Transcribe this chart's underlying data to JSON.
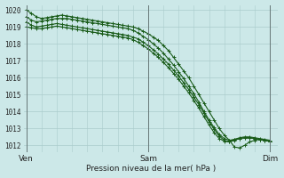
{
  "background_color": "#cce8e8",
  "grid_color": "#aacccc",
  "line_color": "#1a5c1a",
  "xlabel": "Pression niveau de la mer( hPa )",
  "xtick_labels": [
    "Ven",
    "Sam",
    "Dim"
  ],
  "xtick_positions": [
    0,
    24,
    48
  ],
  "ytick_min": 1012,
  "ytick_max": 1020,
  "xlim": [
    -0.5,
    49.5
  ],
  "ylim": [
    1011.6,
    1020.3
  ],
  "line1_x": [
    0,
    1,
    2,
    3,
    4,
    5,
    6,
    7,
    8,
    9,
    10,
    11,
    12,
    13,
    14,
    15,
    16,
    17,
    18,
    19,
    20,
    21,
    22,
    23,
    24,
    25,
    26,
    27,
    28,
    29,
    30,
    31,
    32,
    33,
    34,
    35,
    36,
    37,
    38,
    39,
    40,
    41,
    42,
    43,
    44,
    45,
    46,
    47,
    48
  ],
  "line1_y": [
    1020.0,
    1019.8,
    1019.6,
    1019.5,
    1019.55,
    1019.6,
    1019.65,
    1019.7,
    1019.65,
    1019.6,
    1019.55,
    1019.5,
    1019.45,
    1019.4,
    1019.35,
    1019.3,
    1019.25,
    1019.2,
    1019.15,
    1019.1,
    1019.05,
    1019.0,
    1018.9,
    1018.75,
    1018.6,
    1018.4,
    1018.2,
    1017.9,
    1017.6,
    1017.2,
    1016.8,
    1016.4,
    1016.0,
    1015.5,
    1015.0,
    1014.5,
    1014.0,
    1013.5,
    1013.0,
    1012.6,
    1012.3,
    1011.9,
    1011.85,
    1012.0,
    1012.2,
    1012.3,
    1012.35,
    1012.3,
    1012.25
  ],
  "line2_x": [
    0,
    1,
    2,
    3,
    4,
    5,
    6,
    7,
    8,
    9,
    10,
    11,
    12,
    13,
    14,
    15,
    16,
    17,
    18,
    19,
    20,
    21,
    22,
    23,
    24,
    25,
    26,
    27,
    28,
    29,
    30,
    31,
    32,
    33,
    34,
    35,
    36,
    37,
    38,
    39,
    40,
    41,
    42,
    43,
    44,
    45,
    46,
    47,
    48
  ],
  "line2_y": [
    1019.3,
    1019.1,
    1019.0,
    1019.05,
    1019.1,
    1019.15,
    1019.2,
    1019.15,
    1019.1,
    1019.05,
    1019.0,
    1018.95,
    1018.9,
    1018.85,
    1018.8,
    1018.75,
    1018.7,
    1018.65,
    1018.6,
    1018.55,
    1018.5,
    1018.4,
    1018.3,
    1018.1,
    1017.9,
    1017.65,
    1017.4,
    1017.1,
    1016.8,
    1016.45,
    1016.1,
    1015.7,
    1015.3,
    1014.85,
    1014.4,
    1013.9,
    1013.4,
    1012.95,
    1012.55,
    1012.3,
    1012.2,
    1012.3,
    1012.4,
    1012.45,
    1012.45,
    1012.4,
    1012.35,
    1012.3,
    1012.25
  ],
  "line3_x": [
    0,
    1,
    2,
    3,
    4,
    5,
    6,
    7,
    8,
    9,
    10,
    11,
    12,
    13,
    14,
    15,
    16,
    17,
    18,
    19,
    20,
    21,
    22,
    23,
    24,
    25,
    26,
    27,
    28,
    29,
    30,
    31,
    32,
    33,
    34,
    35,
    36,
    37,
    38,
    39,
    40,
    41,
    42,
    43,
    44,
    45,
    46,
    47,
    48
  ],
  "line3_y": [
    1019.6,
    1019.4,
    1019.3,
    1019.35,
    1019.4,
    1019.45,
    1019.5,
    1019.5,
    1019.5,
    1019.45,
    1019.4,
    1019.35,
    1019.3,
    1019.25,
    1019.2,
    1019.15,
    1019.1,
    1019.05,
    1019.0,
    1018.95,
    1018.9,
    1018.8,
    1018.65,
    1018.45,
    1018.25,
    1018.0,
    1017.75,
    1017.45,
    1017.1,
    1016.75,
    1016.35,
    1015.95,
    1015.5,
    1015.05,
    1014.55,
    1014.0,
    1013.5,
    1013.05,
    1012.65,
    1012.4,
    1012.3,
    1012.35,
    1012.4,
    1012.45,
    1012.45,
    1012.4,
    1012.35,
    1012.3,
    1012.25
  ],
  "line4_x": [
    0,
    1,
    2,
    3,
    4,
    5,
    6,
    7,
    8,
    9,
    10,
    11,
    12,
    13,
    14,
    15,
    16,
    17,
    18,
    19,
    20,
    21,
    22,
    23,
    24,
    25,
    26,
    27,
    28,
    29,
    30,
    31,
    32,
    33,
    34,
    35,
    36,
    37,
    38,
    39,
    40,
    41,
    42,
    43,
    44,
    45,
    46,
    47,
    48
  ],
  "line4_y": [
    1019.0,
    1018.95,
    1018.9,
    1018.9,
    1018.95,
    1019.0,
    1019.05,
    1019.0,
    1018.95,
    1018.9,
    1018.85,
    1018.8,
    1018.75,
    1018.7,
    1018.65,
    1018.6,
    1018.55,
    1018.5,
    1018.45,
    1018.4,
    1018.35,
    1018.25,
    1018.1,
    1017.9,
    1017.7,
    1017.45,
    1017.2,
    1016.9,
    1016.6,
    1016.25,
    1015.9,
    1015.5,
    1015.1,
    1014.65,
    1014.2,
    1013.7,
    1013.2,
    1012.75,
    1012.4,
    1012.25,
    1012.25,
    1012.35,
    1012.45,
    1012.5,
    1012.5,
    1012.45,
    1012.4,
    1012.35,
    1012.3
  ]
}
